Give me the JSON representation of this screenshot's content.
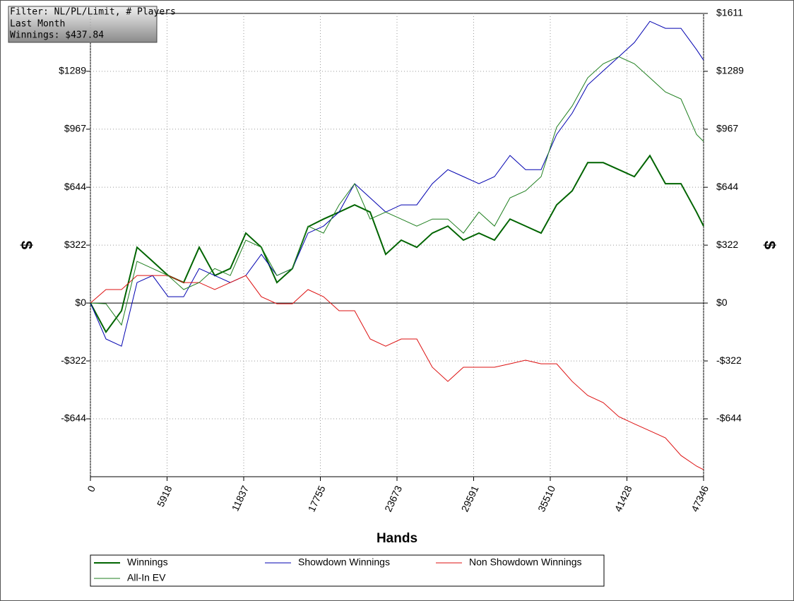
{
  "chart_data": {
    "type": "line",
    "annotations": [
      "Filter: NL/PL/Limit, # Players",
      "Last Month",
      "Winnings: $437.84"
    ],
    "x_label": "Hands",
    "y_label": "$",
    "y2_label": "$",
    "x": [
      0,
      1200,
      2400,
      3600,
      4800,
      6000,
      7200,
      8400,
      9600,
      10800,
      12000,
      13200,
      14400,
      15600,
      16800,
      18000,
      19200,
      20400,
      21600,
      22800,
      24000,
      25200,
      26400,
      27600,
      28800,
      30000,
      31200,
      32400,
      33600,
      34800,
      36000,
      37200,
      38400,
      39600,
      40800,
      42000,
      43200,
      44400,
      45600,
      46800,
      47346
    ],
    "series": [
      {
        "name": "Winnings",
        "color": "#006400",
        "width": 2,
        "values": [
          0,
          -161,
          -43,
          310,
          232,
          153,
          114,
          310,
          153,
          192,
          389,
          310,
          114,
          192,
          424,
          467,
          506,
          546,
          506,
          271,
          350,
          310,
          389,
          428,
          350,
          389,
          350,
          467,
          428,
          389,
          546,
          624,
          781,
          781,
          742,
          703,
          820,
          664,
          664,
          506,
          428
        ]
      },
      {
        "name": "Showdown Winnings",
        "color": "#0000b0",
        "width": 1,
        "values": [
          0,
          -200,
          -240,
          114,
          153,
          35,
          35,
          192,
          153,
          114,
          153,
          271,
          153,
          192,
          389,
          428,
          506,
          664,
          585,
          506,
          546,
          546,
          664,
          742,
          703,
          664,
          703,
          821,
          742,
          742,
          938,
          1056,
          1213,
          1292,
          1370,
          1449,
          1567,
          1528,
          1528,
          1410,
          1351
        ]
      },
      {
        "name": "Non Showdown Winnings",
        "color": "#dd1111",
        "width": 1,
        "values": [
          0,
          75,
          75,
          153,
          153,
          153,
          114,
          114,
          75,
          114,
          153,
          35,
          -4,
          -4,
          75,
          35,
          -43,
          -43,
          -200,
          -240,
          -200,
          -200,
          -357,
          -436,
          -357,
          -357,
          -357,
          -338,
          -318,
          -338,
          -338,
          -436,
          -514,
          -554,
          -632,
          -672,
          -711,
          -750,
          -848,
          -907,
          -927
        ]
      },
      {
        "name": "All-In EV",
        "color": "#1f7f1f",
        "width": 1,
        "values": [
          0,
          -4,
          -122,
          232,
          192,
          153,
          75,
          114,
          192,
          153,
          350,
          310,
          153,
          192,
          428,
          389,
          546,
          664,
          467,
          506,
          467,
          428,
          467,
          467,
          389,
          506,
          428,
          585,
          624,
          703,
          978,
          1096,
          1253,
          1331,
          1370,
          1331,
          1253,
          1174,
          1135,
          938,
          899
        ]
      }
    ],
    "xlim": [
      0,
      47346
    ],
    "xticks": [
      0,
      5918,
      11837,
      17755,
      23673,
      29591,
      35510,
      41428,
      47346
    ],
    "ylim": [
      -966,
      1611
    ],
    "yticks": [
      {
        "value": 1289,
        "label": "$1289"
      },
      {
        "value": 967,
        "label": "$967"
      },
      {
        "value": 644,
        "label": "$644"
      },
      {
        "value": 322,
        "label": "$322"
      },
      {
        "value": 0,
        "label": "$0"
      },
      {
        "value": -322,
        "label": "-$322"
      },
      {
        "value": -644,
        "label": "-$644"
      }
    ],
    "y2lim": [
      -966,
      1611
    ],
    "y2ticks": [
      {
        "value": 1611,
        "label": "$1611"
      },
      {
        "value": 1289,
        "label": "$1289"
      },
      {
        "value": 967,
        "label": "$967"
      },
      {
        "value": 644,
        "label": "$644"
      },
      {
        "value": 322,
        "label": "$322"
      },
      {
        "value": 0,
        "label": "$0"
      },
      {
        "value": -322,
        "label": "-$322"
      },
      {
        "value": -644,
        "label": "-$644"
      }
    ],
    "grid": true
  }
}
